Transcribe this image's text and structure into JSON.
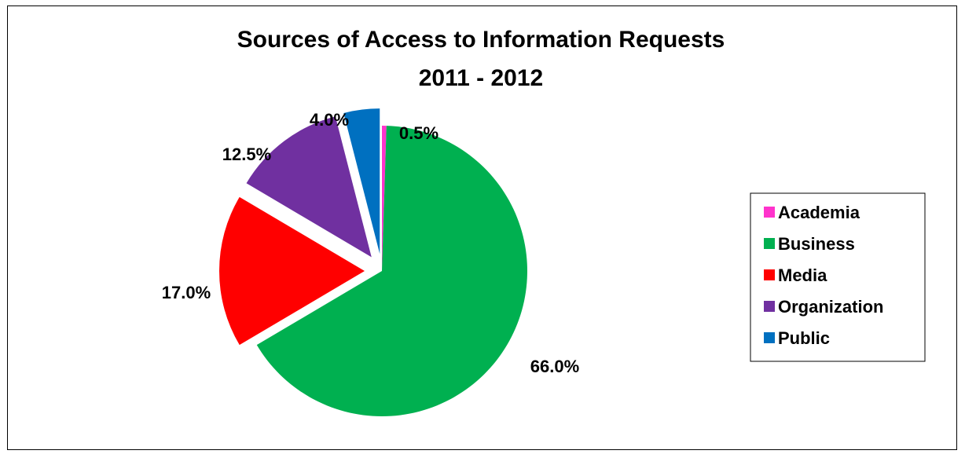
{
  "chart_data": {
    "type": "pie",
    "title": "Sources of Access to Information Requests",
    "subtitle": "2011 - 2012",
    "categories": [
      "Academia",
      "Business",
      "Media",
      "Organization",
      "Public"
    ],
    "values": [
      0.5,
      66.0,
      17.0,
      12.5,
      4.0
    ],
    "labels": [
      "0.5%",
      "66.0%",
      "17.0%",
      "12.5%",
      "4.0%"
    ],
    "colors": [
      "#FF33CC",
      "#00B050",
      "#FF0000",
      "#7030A0",
      "#0070C0"
    ],
    "exploded": true,
    "legend_position": "right"
  }
}
